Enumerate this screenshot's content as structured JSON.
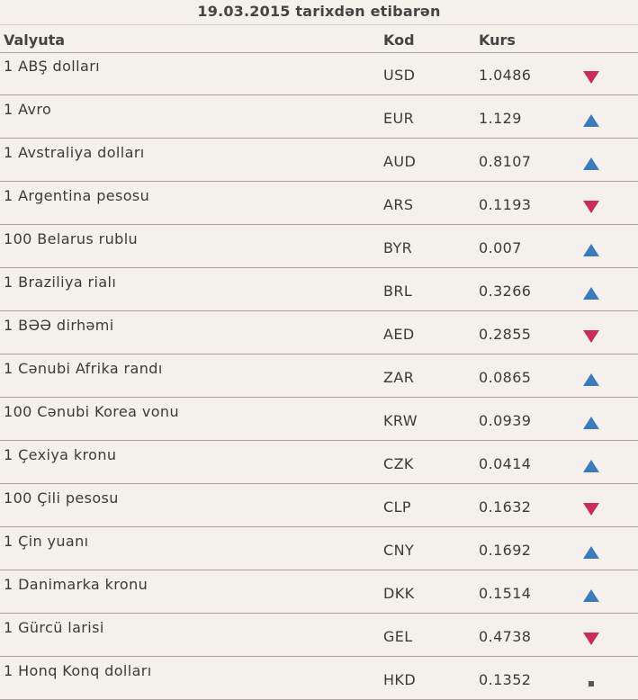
{
  "title": "19.03.2015 tarixdən etibarən",
  "columns": {
    "name": "Valyuta",
    "code": "Kod",
    "rate": "Kurs"
  },
  "colors": {
    "up": "#3a7cc2",
    "down": "#cc2a5a",
    "neutral": "#555555"
  },
  "rows": [
    {
      "name": "1 ABŞ dolları",
      "code": "USD",
      "rate": "1.0486",
      "trend": "down"
    },
    {
      "name": "1 Avro",
      "code": "EUR",
      "rate": "1.129",
      "trend": "up"
    },
    {
      "name": "1 Avstraliya dolları",
      "code": "AUD",
      "rate": "0.8107",
      "trend": "up"
    },
    {
      "name": "1 Argentina pesosu",
      "code": "ARS",
      "rate": "0.1193",
      "trend": "down"
    },
    {
      "name": "100 Belarus rublu",
      "code": "BYR",
      "rate": "0.007",
      "trend": "up"
    },
    {
      "name": "1 Braziliya rialı",
      "code": "BRL",
      "rate": "0.3266",
      "trend": "up"
    },
    {
      "name": "1 BƏƏ dirhəmi",
      "code": "AED",
      "rate": "0.2855",
      "trend": "down"
    },
    {
      "name": "1 Cənubi Afrika randı",
      "code": "ZAR",
      "rate": "0.0865",
      "trend": "up"
    },
    {
      "name": "100 Cənubi Korea vonu",
      "code": "KRW",
      "rate": "0.0939",
      "trend": "up"
    },
    {
      "name": "1 Çexiya kronu",
      "code": "CZK",
      "rate": "0.0414",
      "trend": "up"
    },
    {
      "name": "100 Çili pesosu",
      "code": "CLP",
      "rate": "0.1632",
      "trend": "down"
    },
    {
      "name": "1 Çin yuanı",
      "code": "CNY",
      "rate": "0.1692",
      "trend": "up"
    },
    {
      "name": "1 Danimarka kronu",
      "code": "DKK",
      "rate": "0.1514",
      "trend": "up"
    },
    {
      "name": "1 Gürcü larisi",
      "code": "GEL",
      "rate": "0.4738",
      "trend": "down"
    },
    {
      "name": "1 Honq Konq dolları",
      "code": "HKD",
      "rate": "0.1352",
      "trend": "neutral"
    }
  ]
}
